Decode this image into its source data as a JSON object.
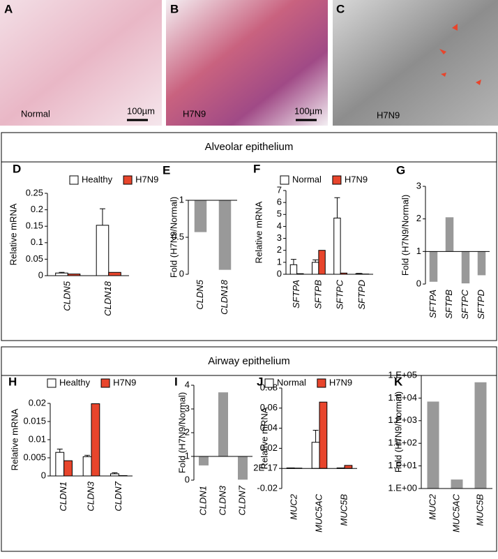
{
  "images": [
    {
      "letter": "A",
      "caption": "Normal",
      "scale": "100µm"
    },
    {
      "letter": "B",
      "caption": "H7N9",
      "scale": "100µm"
    },
    {
      "letter": "C",
      "caption": "H7N9"
    }
  ],
  "sections": [
    "Alveolar epithelium",
    "Airway epithelium"
  ],
  "chart_data": [
    {
      "panel": "D",
      "type": "bar",
      "ylabel": "Relative mRNA",
      "categories": [
        "CLDN5",
        "CLDN18"
      ],
      "series": [
        {
          "name": "Healthy",
          "color": "#ffffff",
          "values": [
            0.008,
            0.153
          ],
          "errors": [
            0.002,
            0.05
          ]
        },
        {
          "name": "H7N9",
          "color": "#e8452c",
          "values": [
            0.005,
            0.01
          ]
        }
      ],
      "ylim": [
        0,
        0.25
      ],
      "yticks": [
        0,
        0.05,
        0.1,
        0.15,
        0.2,
        0.25
      ]
    },
    {
      "panel": "E",
      "type": "bar",
      "ylabel": "Fold (H7N9/Normal)",
      "categories": [
        "CLDN5",
        "CLDN18"
      ],
      "values": [
        0.57,
        0.06
      ],
      "color": "#999999",
      "baseline": 1,
      "ylim": [
        0,
        1
      ],
      "yticks": [
        0,
        0.5,
        1
      ]
    },
    {
      "panel": "F",
      "type": "bar",
      "ylabel": "Relative mRNA",
      "categories": [
        "SFTPA",
        "SFTPB",
        "SFTPC",
        "SFTPD"
      ],
      "series": [
        {
          "name": "Normal",
          "color": "#ffffff",
          "values": [
            0.8,
            1.0,
            4.7,
            0.05
          ],
          "errors": [
            0.45,
            0.2,
            1.7,
            0.02
          ]
        },
        {
          "name": "H7N9",
          "color": "#e8452c",
          "values": [
            0.05,
            2.0,
            0.1,
            0.02
          ]
        }
      ],
      "ylim": [
        0,
        7
      ],
      "yticks": [
        0,
        1,
        2,
        3,
        4,
        5,
        6,
        7
      ]
    },
    {
      "panel": "G",
      "type": "bar",
      "ylabel": "Fold (H7N9/Normal)",
      "categories": [
        "SFTPA",
        "SFTPB",
        "SFTPC",
        "SFTPD"
      ],
      "values": [
        0.07,
        2.05,
        0.02,
        0.27
      ],
      "color": "#999999",
      "baseline": 1,
      "ylim": [
        0,
        3
      ],
      "yticks": [
        0,
        1,
        2,
        3
      ]
    },
    {
      "panel": "H",
      "type": "bar",
      "ylabel": "Relative mRNA",
      "categories": [
        "CLDN1",
        "CLDN3",
        "CLDN7"
      ],
      "series": [
        {
          "name": "Healthy",
          "color": "#ffffff",
          "values": [
            0.0065,
            0.0053,
            0.0006
          ],
          "errors": [
            0.0009,
            0.0004,
            0.0003
          ]
        },
        {
          "name": "H7N9",
          "color": "#e8452c",
          "values": [
            0.0042,
            0.0199,
            0.0001
          ]
        }
      ],
      "ylim": [
        0,
        0.02
      ],
      "yticks": [
        0,
        0.005,
        0.01,
        0.015,
        0.02
      ]
    },
    {
      "panel": "I",
      "type": "bar",
      "ylabel": "Fold (H7N9/Normal)",
      "categories": [
        "CLDN1",
        "CLDN3",
        "CLDN7"
      ],
      "values": [
        0.62,
        3.7,
        0.02
      ],
      "color": "#999999",
      "baseline": 1,
      "ylim": [
        0,
        4
      ],
      "yticks": [
        0,
        1,
        2,
        3,
        4
      ]
    },
    {
      "panel": "J",
      "type": "bar",
      "ylabel": "Relative mRNA",
      "categories": [
        "MUC2",
        "MUC5AC",
        "MUC5B"
      ],
      "series": [
        {
          "name": "Normal",
          "color": "#ffffff",
          "values": [
            0.0005,
            0.026,
            0.0005
          ],
          "errors": [
            null,
            0.012,
            null
          ]
        },
        {
          "name": "H7N9",
          "color": "#e8452c",
          "values": [
            0.0003,
            0.066,
            0.003
          ]
        }
      ],
      "ylim": [
        -0.02,
        0.08
      ],
      "yticks": [
        -0.02,
        {
          "value": 0,
          "label": "2E-17"
        },
        0.02,
        0.04,
        0.06,
        0.08
      ]
    },
    {
      "panel": "K",
      "type": "bar",
      "ylabel": "Fold (H7N9/Normal)",
      "categories": [
        "MUC2",
        "MUC5AC",
        "MUC5B"
      ],
      "values": [
        7000,
        2.5,
        50000
      ],
      "color": "#999999",
      "log_scale": true,
      "ylim": [
        1,
        100000
      ],
      "yticks": [
        {
          "value": 1,
          "label": "1.E+00"
        },
        {
          "value": 10,
          "label": "1.E+01"
        },
        {
          "value": 100,
          "label": "1.E+02"
        },
        {
          "value": 1000,
          "label": "1.E+03"
        },
        {
          "value": 10000,
          "label": "1.E+04"
        },
        {
          "value": 100000,
          "label": "1.E+05"
        }
      ]
    }
  ]
}
